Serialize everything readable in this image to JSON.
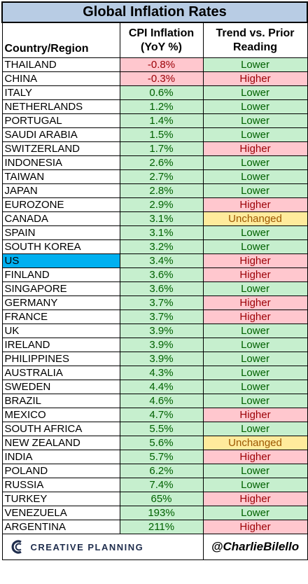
{
  "title": "Global Inflation Rates",
  "headers": {
    "country": "Country/Region",
    "cpi": "CPI Inflation (YoY %)",
    "trend": "Trend vs. Prior Reading"
  },
  "highlight_country": "US",
  "colors": {
    "title_bg": "#b8cce4",
    "highlight_bg": "#00b0f0",
    "negative_bg": "#ffc7ce",
    "negative_text": "#9c0006",
    "positive_bg": "#c6efce",
    "positive_text": "#006100",
    "unchanged_bg": "#ffeb9c",
    "unchanged_text": "#9c5700"
  },
  "footer": {
    "brand": "CREATIVE PLANNING",
    "brand_logo_icon": "creative-planning-logo-icon",
    "handle": "@CharlieBilello"
  },
  "chart_data": {
    "type": "table",
    "title": "Global Inflation Rates",
    "columns": [
      "Country/Region",
      "CPI Inflation (YoY %)",
      "Trend vs. Prior Reading"
    ],
    "rows": [
      {
        "country": "THAILAND",
        "cpi": "-0.8%",
        "value": -0.8,
        "trend": "Lower"
      },
      {
        "country": "CHINA",
        "cpi": "-0.3%",
        "value": -0.3,
        "trend": "Higher"
      },
      {
        "country": "ITALY",
        "cpi": "0.6%",
        "value": 0.6,
        "trend": "Lower"
      },
      {
        "country": "NETHERLANDS",
        "cpi": "1.2%",
        "value": 1.2,
        "trend": "Lower"
      },
      {
        "country": "PORTUGAL",
        "cpi": "1.4%",
        "value": 1.4,
        "trend": "Lower"
      },
      {
        "country": "SAUDI ARABIA",
        "cpi": "1.5%",
        "value": 1.5,
        "trend": "Lower"
      },
      {
        "country": "SWITZERLAND",
        "cpi": "1.7%",
        "value": 1.7,
        "trend": "Higher"
      },
      {
        "country": "INDONESIA",
        "cpi": "2.6%",
        "value": 2.6,
        "trend": "Lower"
      },
      {
        "country": "TAIWAN",
        "cpi": "2.7%",
        "value": 2.7,
        "trend": "Lower"
      },
      {
        "country": "JAPAN",
        "cpi": "2.8%",
        "value": 2.8,
        "trend": "Lower"
      },
      {
        "country": "EUROZONE",
        "cpi": "2.9%",
        "value": 2.9,
        "trend": "Higher"
      },
      {
        "country": "CANADA",
        "cpi": "3.1%",
        "value": 3.1,
        "trend": "Unchanged"
      },
      {
        "country": "SPAIN",
        "cpi": "3.1%",
        "value": 3.1,
        "trend": "Lower"
      },
      {
        "country": "SOUTH KOREA",
        "cpi": "3.2%",
        "value": 3.2,
        "trend": "Lower"
      },
      {
        "country": "US",
        "cpi": "3.4%",
        "value": 3.4,
        "trend": "Higher"
      },
      {
        "country": "FINLAND",
        "cpi": "3.6%",
        "value": 3.6,
        "trend": "Higher"
      },
      {
        "country": "SINGAPORE",
        "cpi": "3.6%",
        "value": 3.6,
        "trend": "Lower"
      },
      {
        "country": "GERMANY",
        "cpi": "3.7%",
        "value": 3.7,
        "trend": "Higher"
      },
      {
        "country": "FRANCE",
        "cpi": "3.7%",
        "value": 3.7,
        "trend": "Higher"
      },
      {
        "country": "UK",
        "cpi": "3.9%",
        "value": 3.9,
        "trend": "Lower"
      },
      {
        "country": "IRELAND",
        "cpi": "3.9%",
        "value": 3.9,
        "trend": "Lower"
      },
      {
        "country": "PHILIPPINES",
        "cpi": "3.9%",
        "value": 3.9,
        "trend": "Lower"
      },
      {
        "country": "AUSTRALIA",
        "cpi": "4.3%",
        "value": 4.3,
        "trend": "Lower"
      },
      {
        "country": "SWEDEN",
        "cpi": "4.4%",
        "value": 4.4,
        "trend": "Lower"
      },
      {
        "country": "BRAZIL",
        "cpi": "4.6%",
        "value": 4.6,
        "trend": "Lower"
      },
      {
        "country": "MEXICO",
        "cpi": "4.7%",
        "value": 4.7,
        "trend": "Higher"
      },
      {
        "country": "SOUTH AFRICA",
        "cpi": "5.5%",
        "value": 5.5,
        "trend": "Lower"
      },
      {
        "country": "NEW ZEALAND",
        "cpi": "5.6%",
        "value": 5.6,
        "trend": "Unchanged"
      },
      {
        "country": "INDIA",
        "cpi": "5.7%",
        "value": 5.7,
        "trend": "Higher"
      },
      {
        "country": "POLAND",
        "cpi": "6.2%",
        "value": 6.2,
        "trend": "Lower"
      },
      {
        "country": "RUSSIA",
        "cpi": "7.4%",
        "value": 7.4,
        "trend": "Lower"
      },
      {
        "country": "TURKEY",
        "cpi": "65%",
        "value": 65,
        "trend": "Higher"
      },
      {
        "country": "VENEZUELA",
        "cpi": "193%",
        "value": 193,
        "trend": "Lower"
      },
      {
        "country": "ARGENTINA",
        "cpi": "211%",
        "value": 211,
        "trend": "Higher"
      }
    ]
  }
}
